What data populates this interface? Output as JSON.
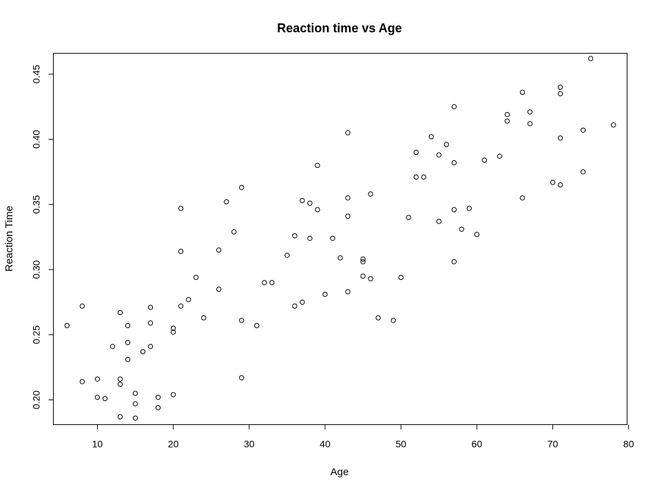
{
  "chart_data": {
    "type": "scatter",
    "title": "Reaction time vs Age",
    "xlabel": "Age",
    "ylabel": "Reaction Time",
    "xlim": [
      4.2,
      79.8
    ],
    "ylim": [
      0.181,
      0.466
    ],
    "xticks": [
      10,
      20,
      30,
      40,
      50,
      60,
      70,
      80
    ],
    "xtick_labels": [
      "10",
      "20",
      "30",
      "40",
      "50",
      "60",
      "70",
      "80"
    ],
    "yticks": [
      0.2,
      0.25,
      0.3,
      0.35,
      0.4,
      0.45
    ],
    "ytick_labels": [
      "0.20",
      "0.25",
      "0.30",
      "0.35",
      "0.40",
      "0.45"
    ],
    "grid": false,
    "points": [
      {
        "x": 6,
        "y": 0.257
      },
      {
        "x": 8,
        "y": 0.272
      },
      {
        "x": 8,
        "y": 0.214
      },
      {
        "x": 10,
        "y": 0.216
      },
      {
        "x": 10,
        "y": 0.202
      },
      {
        "x": 11,
        "y": 0.201
      },
      {
        "x": 12,
        "y": 0.241
      },
      {
        "x": 13,
        "y": 0.267
      },
      {
        "x": 13,
        "y": 0.216
      },
      {
        "x": 13,
        "y": 0.212
      },
      {
        "x": 13,
        "y": 0.187
      },
      {
        "x": 14,
        "y": 0.257
      },
      {
        "x": 14,
        "y": 0.244
      },
      {
        "x": 14,
        "y": 0.231
      },
      {
        "x": 15,
        "y": 0.205
      },
      {
        "x": 15,
        "y": 0.197
      },
      {
        "x": 15,
        "y": 0.186
      },
      {
        "x": 16,
        "y": 0.237
      },
      {
        "x": 17,
        "y": 0.271
      },
      {
        "x": 17,
        "y": 0.259
      },
      {
        "x": 17,
        "y": 0.241
      },
      {
        "x": 18,
        "y": 0.202
      },
      {
        "x": 18,
        "y": 0.194
      },
      {
        "x": 20,
        "y": 0.255
      },
      {
        "x": 20,
        "y": 0.252
      },
      {
        "x": 20,
        "y": 0.204
      },
      {
        "x": 21,
        "y": 0.347
      },
      {
        "x": 21,
        "y": 0.314
      },
      {
        "x": 21,
        "y": 0.272
      },
      {
        "x": 22,
        "y": 0.277
      },
      {
        "x": 23,
        "y": 0.294
      },
      {
        "x": 24,
        "y": 0.263
      },
      {
        "x": 26,
        "y": 0.315
      },
      {
        "x": 26,
        "y": 0.285
      },
      {
        "x": 27,
        "y": 0.352
      },
      {
        "x": 28,
        "y": 0.329
      },
      {
        "x": 29,
        "y": 0.363
      },
      {
        "x": 29,
        "y": 0.261
      },
      {
        "x": 29,
        "y": 0.217
      },
      {
        "x": 31,
        "y": 0.257
      },
      {
        "x": 32,
        "y": 0.29
      },
      {
        "x": 33,
        "y": 0.29
      },
      {
        "x": 35,
        "y": 0.311
      },
      {
        "x": 36,
        "y": 0.326
      },
      {
        "x": 36,
        "y": 0.272
      },
      {
        "x": 37,
        "y": 0.353
      },
      {
        "x": 37,
        "y": 0.275
      },
      {
        "x": 38,
        "y": 0.351
      },
      {
        "x": 38,
        "y": 0.324
      },
      {
        "x": 39,
        "y": 0.38
      },
      {
        "x": 39,
        "y": 0.346
      },
      {
        "x": 40,
        "y": 0.281
      },
      {
        "x": 41,
        "y": 0.324
      },
      {
        "x": 42,
        "y": 0.309
      },
      {
        "x": 43,
        "y": 0.405
      },
      {
        "x": 43,
        "y": 0.355
      },
      {
        "x": 43,
        "y": 0.341
      },
      {
        "x": 43,
        "y": 0.283
      },
      {
        "x": 45,
        "y": 0.308
      },
      {
        "x": 45,
        "y": 0.306
      },
      {
        "x": 45,
        "y": 0.295
      },
      {
        "x": 46,
        "y": 0.358
      },
      {
        "x": 46,
        "y": 0.293
      },
      {
        "x": 47,
        "y": 0.263
      },
      {
        "x": 49,
        "y": 0.261
      },
      {
        "x": 50,
        "y": 0.294
      },
      {
        "x": 51,
        "y": 0.34
      },
      {
        "x": 52,
        "y": 0.39
      },
      {
        "x": 52,
        "y": 0.371
      },
      {
        "x": 53,
        "y": 0.371
      },
      {
        "x": 54,
        "y": 0.402
      },
      {
        "x": 55,
        "y": 0.388
      },
      {
        "x": 55,
        "y": 0.337
      },
      {
        "x": 56,
        "y": 0.396
      },
      {
        "x": 57,
        "y": 0.425
      },
      {
        "x": 57,
        "y": 0.382
      },
      {
        "x": 57,
        "y": 0.346
      },
      {
        "x": 57,
        "y": 0.306
      },
      {
        "x": 58,
        "y": 0.331
      },
      {
        "x": 59,
        "y": 0.347
      },
      {
        "x": 60,
        "y": 0.327
      },
      {
        "x": 61,
        "y": 0.384
      },
      {
        "x": 63,
        "y": 0.387
      },
      {
        "x": 64,
        "y": 0.419
      },
      {
        "x": 64,
        "y": 0.414
      },
      {
        "x": 66,
        "y": 0.436
      },
      {
        "x": 66,
        "y": 0.355
      },
      {
        "x": 67,
        "y": 0.421
      },
      {
        "x": 67,
        "y": 0.412
      },
      {
        "x": 70,
        "y": 0.367
      },
      {
        "x": 71,
        "y": 0.44
      },
      {
        "x": 71,
        "y": 0.435
      },
      {
        "x": 71,
        "y": 0.401
      },
      {
        "x": 71,
        "y": 0.365
      },
      {
        "x": 74,
        "y": 0.407
      },
      {
        "x": 74,
        "y": 0.375
      },
      {
        "x": 75,
        "y": 0.462
      },
      {
        "x": 78,
        "y": 0.411
      }
    ]
  }
}
